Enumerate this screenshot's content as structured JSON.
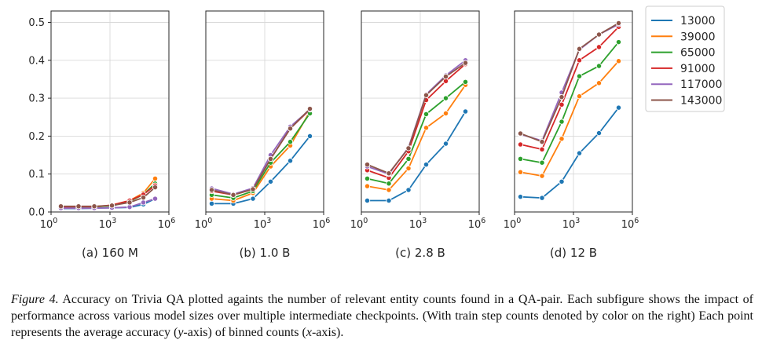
{
  "chart_data": {
    "type": "line",
    "y_axis": {
      "ylim": [
        0,
        0.53
      ],
      "ticks": [
        0.0,
        0.1,
        0.2,
        0.3,
        0.4,
        0.5
      ],
      "tick_labels": [
        "0.0",
        "0.1",
        "0.2",
        "0.3",
        "0.4",
        "0.5"
      ]
    },
    "x_axis": {
      "scale": "log10",
      "xlim_exp": [
        0,
        6
      ],
      "ticks_exp": [
        0,
        3,
        6
      ],
      "tick_base": "10"
    },
    "grid": true,
    "legend": {
      "placement": "right",
      "entries": [
        "13000",
        "39000",
        "65000",
        "91000",
        "117000",
        "143000"
      ]
    },
    "series_colors": [
      "#1f77b4",
      "#ff7f0e",
      "#2ca02c",
      "#d62728",
      "#9467bd",
      "#8c564b"
    ],
    "x_exp": [
      0.25,
      1.4,
      2.4,
      3.0,
      3.9,
      5.3
    ],
    "panels": [
      {
        "label": "(a) 160 M",
        "x_exp": [
          0.5,
          1.4,
          2.2,
          3.1,
          4.0,
          4.7,
          5.3
        ],
        "series": [
          {
            "name": "13000",
            "values": [
              0.009,
              0.009,
              0.01,
              0.011,
              0.012,
              0.02,
              0.035
            ]
          },
          {
            "name": "39000",
            "values": [
              0.012,
              0.013,
              0.013,
              0.018,
              0.03,
              0.05,
              0.088
            ]
          },
          {
            "name": "65000",
            "values": [
              0.013,
              0.013,
              0.014,
              0.016,
              0.028,
              0.046,
              0.075
            ]
          },
          {
            "name": "91000",
            "values": [
              0.013,
              0.014,
              0.014,
              0.018,
              0.03,
              0.046,
              0.07
            ]
          },
          {
            "name": "117000",
            "values": [
              0.01,
              0.01,
              0.01,
              0.011,
              0.013,
              0.025,
              0.035
            ]
          },
          {
            "name": "143000",
            "values": [
              0.015,
              0.015,
              0.015,
              0.017,
              0.025,
              0.038,
              0.065
            ]
          }
        ]
      },
      {
        "label": "(b) 1.0 B",
        "x_exp": [
          0.3,
          1.4,
          2.4,
          3.3,
          4.3,
          5.3
        ],
        "series": [
          {
            "name": "13000",
            "values": [
              0.022,
              0.022,
              0.035,
              0.08,
              0.135,
              0.2
            ]
          },
          {
            "name": "39000",
            "values": [
              0.035,
              0.03,
              0.05,
              0.12,
              0.175,
              0.265
            ]
          },
          {
            "name": "65000",
            "values": [
              0.045,
              0.037,
              0.055,
              0.13,
              0.185,
              0.26
            ]
          },
          {
            "name": "91000",
            "values": [
              0.055,
              0.045,
              0.06,
              0.14,
              0.22,
              0.27
            ]
          },
          {
            "name": "117000",
            "values": [
              0.062,
              0.047,
              0.063,
              0.15,
              0.225,
              0.27
            ]
          },
          {
            "name": "143000",
            "values": [
              0.058,
              0.045,
              0.06,
              0.14,
              0.22,
              0.272
            ]
          }
        ]
      },
      {
        "label": "(c) 2.8 B",
        "x_exp": [
          0.3,
          1.4,
          2.4,
          3.3,
          4.3,
          5.3
        ],
        "series": [
          {
            "name": "13000",
            "values": [
              0.03,
              0.03,
              0.058,
              0.125,
              0.18,
              0.265
            ]
          },
          {
            "name": "39000",
            "values": [
              0.068,
              0.058,
              0.115,
              0.222,
              0.26,
              0.335
            ]
          },
          {
            "name": "65000",
            "values": [
              0.088,
              0.075,
              0.14,
              0.258,
              0.3,
              0.343
            ]
          },
          {
            "name": "91000",
            "values": [
              0.11,
              0.09,
              0.16,
              0.295,
              0.345,
              0.39
            ]
          },
          {
            "name": "117000",
            "values": [
              0.12,
              0.1,
              0.17,
              0.31,
              0.36,
              0.4
            ]
          },
          {
            "name": "143000",
            "values": [
              0.125,
              0.102,
              0.168,
              0.308,
              0.357,
              0.393
            ]
          }
        ]
      },
      {
        "label": "(d) 12 B",
        "x_exp": [
          0.3,
          1.4,
          2.4,
          3.3,
          4.3,
          5.3
        ],
        "series": [
          {
            "name": "13000",
            "values": [
              0.04,
              0.037,
              0.08,
              0.155,
              0.208,
              0.275
            ]
          },
          {
            "name": "39000",
            "values": [
              0.105,
              0.095,
              0.193,
              0.305,
              0.34,
              0.398
            ]
          },
          {
            "name": "65000",
            "values": [
              0.14,
              0.13,
              0.238,
              0.358,
              0.385,
              0.448
            ]
          },
          {
            "name": "91000",
            "values": [
              0.178,
              0.165,
              0.283,
              0.4,
              0.435,
              0.488
            ]
          },
          {
            "name": "117000",
            "values": [
              0.205,
              0.188,
              0.315,
              0.428,
              0.468,
              0.495
            ]
          },
          {
            "name": "143000",
            "values": [
              0.207,
              0.185,
              0.303,
              0.43,
              0.468,
              0.498
            ]
          }
        ]
      }
    ]
  },
  "caption": {
    "label": "Figure 4.",
    "part1": " Accuracy on Trivia QA plotted againts the number of relevant entity counts found in a QA-pair. Each subfigure shows the impact of performance across various model sizes over multiple intermediate checkpoints. (With train step counts denoted by color on the right) Each point represents the average accuracy (",
    "y_var": "y",
    "part2": "-axis) of binned counts (",
    "x_var": "x",
    "part3": "-axis)."
  }
}
